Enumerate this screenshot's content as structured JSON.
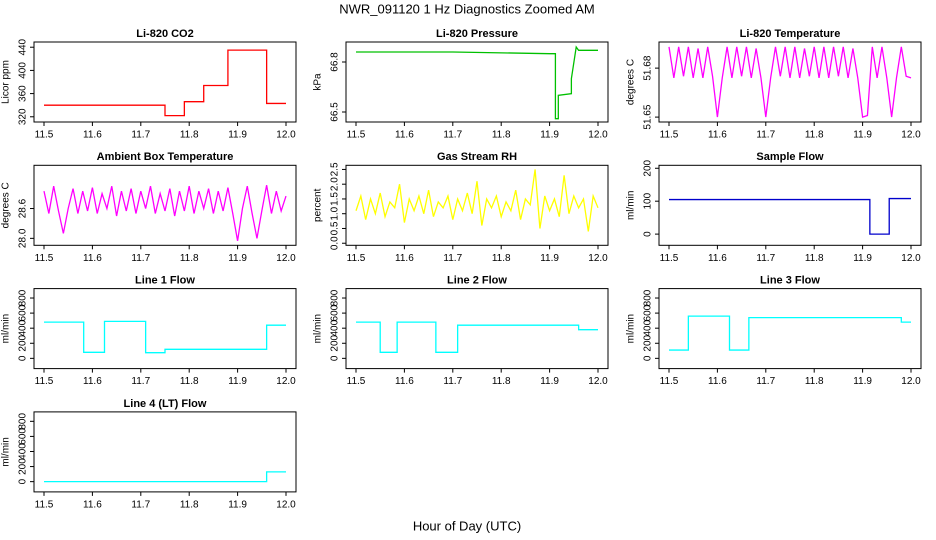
{
  "title": "NWR_091120  1 Hz Diagnostics Zoomed AM",
  "x_label": "Hour of Day (UTC)",
  "chart_data": [
    {
      "type": "line",
      "title": "Li-820 CO2",
      "ylabel": "Licor ppm",
      "color": "#ff0000",
      "x": [
        11.5,
        11.75,
        11.75,
        11.79,
        11.79,
        11.83,
        11.83,
        11.88,
        11.88,
        11.96,
        11.96,
        12.0
      ],
      "values": [
        340,
        340,
        322,
        322,
        346,
        346,
        374,
        374,
        435,
        435,
        343,
        343
      ],
      "xlim": [
        11.5,
        12.0
      ],
      "xticks": [
        11.5,
        11.6,
        11.7,
        11.8,
        11.9,
        {
          "value": 12,
          "label": "12.0"
        }
      ],
      "ylim": [
        311,
        449
      ],
      "yticks": [
        320,
        360,
        400,
        440
      ]
    },
    {
      "type": "line",
      "title": "Li-820 Pressure",
      "ylabel": "kPa",
      "color": "#00c000",
      "x": [
        11.5,
        11.7,
        11.9,
        11.912,
        11.912,
        11.918,
        11.918,
        11.945,
        11.945,
        11.955,
        11.96,
        12.0
      ],
      "values": [
        66.86,
        66.86,
        66.85,
        66.85,
        66.46,
        66.46,
        66.6,
        66.61,
        66.7,
        66.89,
        66.87,
        66.87
      ],
      "xlim": [
        11.5,
        12.0
      ],
      "xticks": [
        11.5,
        11.6,
        11.7,
        11.8,
        11.9,
        {
          "value": 12,
          "label": "12.0"
        }
      ],
      "ylim": [
        66.44,
        66.92
      ],
      "yticks": [
        66.5,
        66.8
      ]
    },
    {
      "type": "line",
      "title": "Li-820 Temperature",
      "ylabel": "degrees C",
      "color": "#ff00ff",
      "x": [
        11.5,
        11.51,
        11.52,
        11.53,
        11.54,
        11.55,
        11.56,
        11.57,
        11.58,
        11.59,
        11.6,
        11.61,
        11.62,
        11.63,
        11.64,
        11.65,
        11.66,
        11.67,
        11.68,
        11.69,
        11.7,
        11.71,
        11.72,
        11.73,
        11.74,
        11.75,
        11.76,
        11.77,
        11.78,
        11.79,
        11.8,
        11.81,
        11.82,
        11.83,
        11.84,
        11.85,
        11.86,
        11.87,
        11.88,
        11.89,
        11.9,
        11.91,
        11.92,
        11.93,
        11.94,
        11.95,
        11.96,
        11.97,
        11.98,
        11.99,
        12.0
      ],
      "values": [
        51.693,
        51.674,
        51.693,
        51.675,
        51.693,
        51.674,
        51.692,
        51.674,
        51.693,
        51.675,
        51.65,
        51.674,
        51.693,
        51.674,
        51.693,
        51.675,
        51.693,
        51.674,
        51.692,
        51.674,
        51.65,
        51.674,
        51.693,
        51.675,
        51.693,
        51.674,
        51.693,
        51.674,
        51.692,
        51.675,
        51.693,
        51.674,
        51.693,
        51.674,
        51.693,
        51.675,
        51.693,
        51.674,
        51.692,
        51.674,
        51.65,
        51.651,
        51.693,
        51.674,
        51.693,
        51.674,
        51.65,
        51.674,
        51.693,
        51.675,
        51.674
      ],
      "xlim": [
        11.5,
        12.0
      ],
      "xticks": [
        11.5,
        11.6,
        11.7,
        11.8,
        11.9,
        {
          "value": 12,
          "label": "12.0"
        }
      ],
      "ylim": [
        51.647,
        51.696
      ],
      "yticks": [
        51.65,
        51.68
      ]
    },
    {
      "type": "line",
      "title": "Ambient Box Temperature",
      "ylabel": "degrees C",
      "color": "#ff00ff",
      "x": [
        11.5,
        11.51,
        11.52,
        11.53,
        11.54,
        11.55,
        11.56,
        11.57,
        11.58,
        11.59,
        11.6,
        11.61,
        11.62,
        11.63,
        11.64,
        11.65,
        11.66,
        11.67,
        11.68,
        11.69,
        11.7,
        11.71,
        11.72,
        11.73,
        11.74,
        11.75,
        11.76,
        11.77,
        11.78,
        11.79,
        11.8,
        11.81,
        11.82,
        11.83,
        11.84,
        11.85,
        11.86,
        11.87,
        11.88,
        11.89,
        11.9,
        11.91,
        11.92,
        11.93,
        11.94,
        11.95,
        11.96,
        11.97,
        11.98,
        11.99,
        12.0
      ],
      "values": [
        28.95,
        28.5,
        29.05,
        28.55,
        28.1,
        28.6,
        29.0,
        28.5,
        28.95,
        28.55,
        29.02,
        28.5,
        28.9,
        28.6,
        29.05,
        28.45,
        28.95,
        28.55,
        29.0,
        28.5,
        28.95,
        28.6,
        29.05,
        28.5,
        28.9,
        28.55,
        29.0,
        28.45,
        28.95,
        28.55,
        29.05,
        28.5,
        28.95,
        28.6,
        29.0,
        28.5,
        28.95,
        28.55,
        29.02,
        28.5,
        27.95,
        28.6,
        29.05,
        28.5,
        28.0,
        28.55,
        29.07,
        28.5,
        28.95,
        28.55,
        28.85
      ],
      "xlim": [
        11.5,
        12.0
      ],
      "xticks": [
        11.5,
        11.6,
        11.7,
        11.8,
        11.9,
        {
          "value": 12,
          "label": "12.0"
        }
      ],
      "ylim": [
        27.86,
        29.47
      ],
      "yticks": [
        {
          "value": 28,
          "label": "28.0"
        },
        28.6
      ]
    },
    {
      "type": "line",
      "title": "Gas Stream RH",
      "ylabel": "percent",
      "color": "#ffff00",
      "x": [
        11.5,
        11.51,
        11.52,
        11.53,
        11.54,
        11.55,
        11.56,
        11.57,
        11.58,
        11.59,
        11.6,
        11.61,
        11.62,
        11.63,
        11.64,
        11.65,
        11.66,
        11.67,
        11.68,
        11.69,
        11.7,
        11.71,
        11.72,
        11.73,
        11.74,
        11.75,
        11.76,
        11.77,
        11.78,
        11.79,
        11.8,
        11.81,
        11.82,
        11.83,
        11.84,
        11.85,
        11.86,
        11.87,
        11.88,
        11.89,
        11.9,
        11.91,
        11.92,
        11.93,
        11.94,
        11.95,
        11.96,
        11.97,
        11.98,
        11.99,
        12.0
      ],
      "values": [
        1.1,
        1.6,
        0.8,
        1.5,
        1.0,
        1.7,
        0.9,
        1.4,
        1.2,
        2.0,
        0.7,
        1.5,
        1.1,
        1.6,
        1.0,
        1.8,
        0.9,
        1.4,
        1.2,
        1.6,
        0.8,
        1.5,
        1.1,
        1.7,
        1.0,
        2.1,
        0.6,
        1.5,
        1.2,
        1.6,
        0.9,
        1.4,
        1.1,
        1.8,
        0.8,
        1.5,
        1.3,
        2.5,
        0.5,
        1.6,
        1.1,
        1.5,
        0.9,
        2.3,
        1.0,
        1.6,
        1.2,
        1.5,
        0.4,
        1.6,
        1.2
      ],
      "xlim": [
        11.5,
        12.0
      ],
      "xticks": [
        11.5,
        11.6,
        11.7,
        11.8,
        11.9,
        {
          "value": 12,
          "label": "12.0"
        }
      ],
      "ylim": [
        -0.07,
        2.64
      ],
      "yticks": [
        {
          "value": 0,
          "label": "0.0"
        },
        0.5,
        {
          "value": 1,
          "label": "1.0"
        },
        1.5,
        {
          "value": 2,
          "label": "2.0"
        },
        2.5
      ]
    },
    {
      "type": "line",
      "title": "Sample Flow",
      "ylabel": "ml/min",
      "color": "#0000cc",
      "x": [
        11.5,
        11.915,
        11.915,
        11.955,
        11.955,
        12.0
      ],
      "values": [
        105,
        105,
        0,
        0,
        108,
        108
      ],
      "xlim": [
        11.5,
        12.0
      ],
      "xticks": [
        11.5,
        11.6,
        11.7,
        11.8,
        11.9,
        {
          "value": 12,
          "label": "12.0"
        }
      ],
      "ylim": [
        -34,
        209
      ],
      "yticks": [
        0,
        100,
        200
      ]
    },
    {
      "type": "line",
      "title": "Line 1 Flow",
      "ylabel": "ml/min",
      "color": "#00ffff",
      "x": [
        11.5,
        11.582,
        11.582,
        11.625,
        11.625,
        11.71,
        11.71,
        11.75,
        11.75,
        11.96,
        11.96,
        12.0
      ],
      "values": [
        480,
        480,
        80,
        80,
        490,
        490,
        75,
        75,
        120,
        120,
        440,
        440
      ],
      "xlim": [
        11.5,
        12.0
      ],
      "xticks": [
        11.5,
        11.6,
        11.7,
        11.8,
        11.9,
        {
          "value": 12,
          "label": "12.0"
        }
      ],
      "ylim": [
        -136,
        925
      ],
      "yticks": [
        0,
        200,
        400,
        600,
        800
      ]
    },
    {
      "type": "line",
      "title": "Line 2 Flow",
      "ylabel": "ml/min",
      "color": "#00ffff",
      "x": [
        11.5,
        11.55,
        11.55,
        11.585,
        11.585,
        11.665,
        11.665,
        11.71,
        11.71,
        11.96,
        11.96,
        12.0
      ],
      "values": [
        480,
        480,
        80,
        80,
        480,
        480,
        80,
        80,
        440,
        440,
        380,
        380
      ],
      "xlim": [
        11.5,
        12.0
      ],
      "xticks": [
        11.5,
        11.6,
        11.7,
        11.8,
        11.9,
        {
          "value": 12,
          "label": "12.0"
        }
      ],
      "ylim": [
        -136,
        925
      ],
      "yticks": [
        0,
        200,
        400,
        600,
        800
      ]
    },
    {
      "type": "line",
      "title": "Line 3 Flow",
      "ylabel": "ml/min",
      "color": "#00ffff",
      "x": [
        11.5,
        11.54,
        11.54,
        11.625,
        11.625,
        11.665,
        11.665,
        11.98,
        11.98,
        12.0
      ],
      "values": [
        110,
        110,
        560,
        560,
        110,
        110,
        540,
        540,
        480,
        480
      ],
      "xlim": [
        11.5,
        12.0
      ],
      "xticks": [
        11.5,
        11.6,
        11.7,
        11.8,
        11.9,
        {
          "value": 12,
          "label": "12.0"
        }
      ],
      "ylim": [
        -136,
        925
      ],
      "yticks": [
        0,
        200,
        400,
        600,
        800
      ]
    },
    {
      "type": "line",
      "title": "Line 4 (LT) Flow",
      "ylabel": "ml/min",
      "color": "#00ffff",
      "x": [
        11.5,
        11.96,
        11.96,
        12.0
      ],
      "values": [
        0,
        0,
        130,
        130
      ],
      "xlim": [
        11.5,
        12.0
      ],
      "xticks": [
        11.5,
        11.6,
        11.7,
        11.8,
        11.9,
        {
          "value": 12,
          "label": "12.0"
        }
      ],
      "ylim": [
        -136,
        925
      ],
      "yticks": [
        0,
        200,
        400,
        600,
        800
      ]
    }
  ]
}
